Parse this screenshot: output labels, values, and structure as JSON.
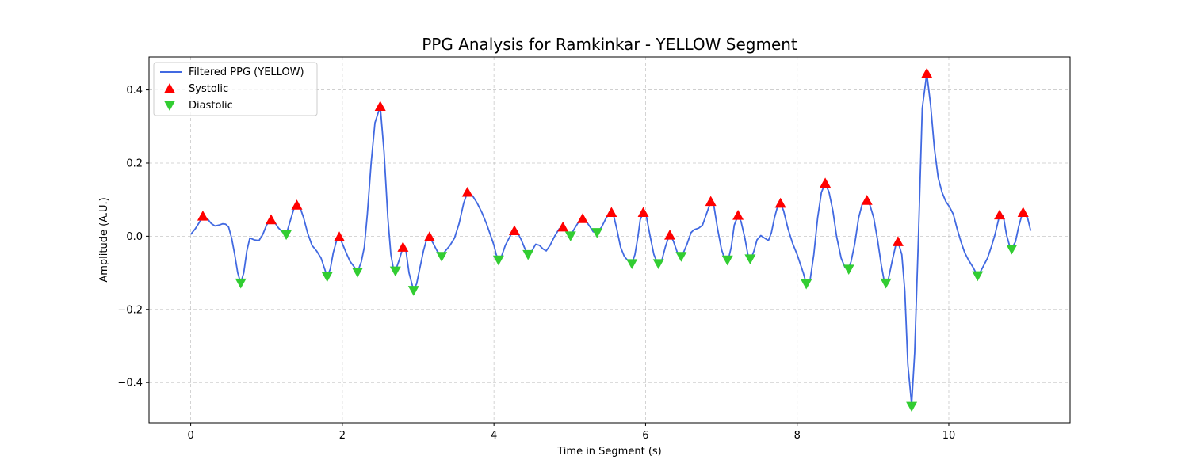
{
  "chart_data": {
    "type": "line",
    "title": "PPG Analysis for Ramkinkar - YELLOW Segment",
    "xlabel": "Time in Segment (s)",
    "ylabel": "Amplitude (A.U.)",
    "xlim": [
      -0.55,
      11.6
    ],
    "ylim": [
      -0.51,
      0.49
    ],
    "xticks": [
      0,
      2,
      4,
      6,
      8,
      10
    ],
    "xtick_labels": [
      "0",
      "2",
      "4",
      "6",
      "8",
      "10"
    ],
    "yticks": [
      -0.4,
      -0.2,
      0.0,
      0.2,
      0.4
    ],
    "ytick_labels": [
      "−0.4",
      "−0.2",
      "0.0",
      "0.2",
      "0.4"
    ],
    "grid": true,
    "legend_position": "top-left",
    "colors": {
      "line": "#4169e1",
      "systolic": "#ff0000",
      "diastolic": "#32cd32"
    },
    "series": [
      {
        "name": "Filtered PPG (YELLOW)",
        "kind": "line",
        "points": [
          [
            0.0,
            0.005
          ],
          [
            0.06,
            0.02
          ],
          [
            0.12,
            0.04
          ],
          [
            0.16,
            0.055
          ],
          [
            0.22,
            0.048
          ],
          [
            0.27,
            0.035
          ],
          [
            0.32,
            0.028
          ],
          [
            0.38,
            0.031
          ],
          [
            0.42,
            0.034
          ],
          [
            0.46,
            0.033
          ],
          [
            0.5,
            0.025
          ],
          [
            0.54,
            -0.005
          ],
          [
            0.58,
            -0.05
          ],
          [
            0.62,
            -0.1
          ],
          [
            0.66,
            -0.128
          ],
          [
            0.7,
            -0.1
          ],
          [
            0.74,
            -0.04
          ],
          [
            0.78,
            -0.005
          ],
          [
            0.84,
            -0.01
          ],
          [
            0.9,
            -0.012
          ],
          [
            0.95,
            0.005
          ],
          [
            1.0,
            0.03
          ],
          [
            1.05,
            0.045
          ],
          [
            1.1,
            0.04
          ],
          [
            1.16,
            0.022
          ],
          [
            1.22,
            0.01
          ],
          [
            1.26,
            0.005
          ],
          [
            1.31,
            0.04
          ],
          [
            1.36,
            0.075
          ],
          [
            1.4,
            0.085
          ],
          [
            1.44,
            0.08
          ],
          [
            1.49,
            0.05
          ],
          [
            1.54,
            0.01
          ],
          [
            1.6,
            -0.025
          ],
          [
            1.66,
            -0.04
          ],
          [
            1.72,
            -0.06
          ],
          [
            1.76,
            -0.085
          ],
          [
            1.8,
            -0.11
          ],
          [
            1.84,
            -0.09
          ],
          [
            1.88,
            -0.045
          ],
          [
            1.92,
            -0.015
          ],
          [
            1.96,
            -0.002
          ],
          [
            2.0,
            -0.02
          ],
          [
            2.05,
            -0.045
          ],
          [
            2.1,
            -0.068
          ],
          [
            2.16,
            -0.085
          ],
          [
            2.2,
            -0.098
          ],
          [
            2.25,
            -0.07
          ],
          [
            2.29,
            -0.03
          ],
          [
            2.33,
            0.06
          ],
          [
            2.38,
            0.2
          ],
          [
            2.43,
            0.31
          ],
          [
            2.5,
            0.355
          ],
          [
            2.55,
            0.23
          ],
          [
            2.6,
            0.05
          ],
          [
            2.64,
            -0.05
          ],
          [
            2.67,
            -0.085
          ],
          [
            2.7,
            -0.095
          ],
          [
            2.75,
            -0.065
          ],
          [
            2.8,
            -0.03
          ],
          [
            2.84,
            -0.04
          ],
          [
            2.88,
            -0.1
          ],
          [
            2.94,
            -0.148
          ],
          [
            2.98,
            -0.13
          ],
          [
            3.02,
            -0.09
          ],
          [
            3.07,
            -0.04
          ],
          [
            3.11,
            -0.01
          ],
          [
            3.15,
            -0.002
          ],
          [
            3.2,
            -0.02
          ],
          [
            3.25,
            -0.04
          ],
          [
            3.31,
            -0.055
          ],
          [
            3.36,
            -0.04
          ],
          [
            3.42,
            -0.025
          ],
          [
            3.48,
            -0.005
          ],
          [
            3.54,
            0.035
          ],
          [
            3.6,
            0.09
          ],
          [
            3.65,
            0.12
          ],
          [
            3.72,
            0.11
          ],
          [
            3.78,
            0.09
          ],
          [
            3.84,
            0.065
          ],
          [
            3.9,
            0.035
          ],
          [
            3.96,
            0.0
          ],
          [
            4.0,
            -0.025
          ],
          [
            4.03,
            -0.05
          ],
          [
            4.06,
            -0.065
          ],
          [
            4.1,
            -0.055
          ],
          [
            4.15,
            -0.025
          ],
          [
            4.2,
            -0.005
          ],
          [
            4.25,
            0.015
          ],
          [
            4.3,
            0.015
          ],
          [
            4.36,
            -0.01
          ],
          [
            4.41,
            -0.035
          ],
          [
            4.45,
            -0.05
          ],
          [
            4.5,
            -0.04
          ],
          [
            4.55,
            -0.022
          ],
          [
            4.6,
            -0.025
          ],
          [
            4.65,
            -0.035
          ],
          [
            4.69,
            -0.04
          ],
          [
            4.74,
            -0.025
          ],
          [
            4.8,
            0.0
          ],
          [
            4.86,
            0.02
          ],
          [
            4.91,
            0.025
          ],
          [
            4.96,
            0.015
          ],
          [
            5.01,
            0.001
          ],
          [
            5.06,
            0.02
          ],
          [
            5.12,
            0.04
          ],
          [
            5.17,
            0.048
          ],
          [
            5.22,
            0.04
          ],
          [
            5.27,
            0.025
          ],
          [
            5.31,
            0.012
          ],
          [
            5.36,
            0.01
          ],
          [
            5.42,
            0.025
          ],
          [
            5.48,
            0.05
          ],
          [
            5.53,
            0.065
          ],
          [
            5.58,
            0.055
          ],
          [
            5.62,
            0.02
          ],
          [
            5.67,
            -0.03
          ],
          [
            5.72,
            -0.055
          ],
          [
            5.78,
            -0.07
          ],
          [
            5.82,
            -0.075
          ],
          [
            5.86,
            -0.05
          ],
          [
            5.9,
            0.0
          ],
          [
            5.93,
            0.045
          ],
          [
            5.97,
            0.065
          ],
          [
            6.01,
            0.055
          ],
          [
            6.06,
            0.0
          ],
          [
            6.11,
            -0.05
          ],
          [
            6.16,
            -0.075
          ],
          [
            6.21,
            -0.07
          ],
          [
            6.26,
            -0.03
          ],
          [
            6.3,
            -0.005
          ],
          [
            6.33,
            0.003
          ],
          [
            6.37,
            -0.015
          ],
          [
            6.42,
            -0.045
          ],
          [
            6.46,
            -0.055
          ],
          [
            6.5,
            -0.045
          ],
          [
            6.55,
            -0.02
          ],
          [
            6.6,
            0.01
          ],
          [
            6.64,
            0.018
          ],
          [
            6.7,
            0.022
          ],
          [
            6.75,
            0.03
          ],
          [
            6.81,
            0.065
          ],
          [
            6.86,
            0.095
          ],
          [
            6.9,
            0.085
          ],
          [
            6.95,
            0.02
          ],
          [
            7.0,
            -0.035
          ],
          [
            7.04,
            -0.06
          ],
          [
            7.09,
            -0.065
          ],
          [
            7.13,
            -0.03
          ],
          [
            7.17,
            0.03
          ],
          [
            7.22,
            0.057
          ],
          [
            7.26,
            0.04
          ],
          [
            7.31,
            -0.005
          ],
          [
            7.35,
            -0.05
          ],
          [
            7.39,
            -0.062
          ],
          [
            7.43,
            -0.04
          ],
          [
            7.47,
            -0.01
          ],
          [
            7.52,
            0.002
          ],
          [
            7.57,
            -0.005
          ],
          [
            7.62,
            -0.012
          ],
          [
            7.66,
            0.01
          ],
          [
            7.7,
            0.05
          ],
          [
            7.74,
            0.08
          ],
          [
            7.78,
            0.09
          ],
          [
            7.82,
            0.07
          ],
          [
            7.88,
            0.02
          ],
          [
            7.94,
            -0.02
          ],
          [
            8.0,
            -0.05
          ],
          [
            8.04,
            -0.075
          ],
          [
            8.08,
            -0.1
          ],
          [
            8.12,
            -0.13
          ],
          [
            8.17,
            -0.12
          ],
          [
            8.22,
            -0.05
          ],
          [
            8.27,
            0.05
          ],
          [
            8.32,
            0.12
          ],
          [
            8.37,
            0.145
          ],
          [
            8.42,
            0.12
          ],
          [
            8.47,
            0.07
          ],
          [
            8.52,
            0.0
          ],
          [
            8.58,
            -0.06
          ],
          [
            8.63,
            -0.085
          ],
          [
            8.67,
            -0.09
          ],
          [
            8.71,
            -0.07
          ],
          [
            8.76,
            -0.02
          ],
          [
            8.81,
            0.05
          ],
          [
            8.86,
            0.09
          ],
          [
            8.92,
            0.098
          ],
          [
            8.96,
            0.085
          ],
          [
            9.01,
            0.05
          ],
          [
            9.06,
            -0.01
          ],
          [
            9.11,
            -0.08
          ],
          [
            9.15,
            -0.125
          ],
          [
            9.2,
            -0.12
          ],
          [
            9.25,
            -0.07
          ],
          [
            9.3,
            -0.025
          ],
          [
            9.33,
            -0.015
          ],
          [
            9.38,
            -0.05
          ],
          [
            9.42,
            -0.15
          ],
          [
            9.46,
            -0.35
          ],
          [
            9.51,
            -0.46
          ],
          [
            9.55,
            -0.32
          ],
          [
            9.6,
            0.0
          ],
          [
            9.65,
            0.35
          ],
          [
            9.71,
            0.445
          ],
          [
            9.76,
            0.36
          ],
          [
            9.81,
            0.24
          ],
          [
            9.86,
            0.16
          ],
          [
            9.91,
            0.12
          ],
          [
            9.96,
            0.095
          ],
          [
            10.01,
            0.08
          ],
          [
            10.06,
            0.06
          ],
          [
            10.11,
            0.02
          ],
          [
            10.16,
            -0.015
          ],
          [
            10.21,
            -0.045
          ],
          [
            10.26,
            -0.065
          ],
          [
            10.32,
            -0.085
          ],
          [
            10.37,
            -0.105
          ],
          [
            10.41,
            -0.1
          ],
          [
            10.46,
            -0.08
          ],
          [
            10.51,
            -0.06
          ],
          [
            10.56,
            -0.03
          ],
          [
            10.61,
            0.005
          ],
          [
            10.67,
            0.058
          ],
          [
            10.72,
            0.055
          ],
          [
            10.76,
            0.005
          ],
          [
            10.8,
            -0.025
          ],
          [
            10.84,
            -0.03
          ],
          [
            10.88,
            -0.015
          ],
          [
            10.92,
            0.025
          ],
          [
            10.96,
            0.055
          ],
          [
            11.0,
            0.06
          ],
          [
            11.04,
            0.05
          ],
          [
            11.08,
            0.015
          ]
        ]
      },
      {
        "name": "Systolic",
        "kind": "marker-up",
        "points": [
          [
            0.16,
            0.055
          ],
          [
            1.06,
            0.045
          ],
          [
            1.4,
            0.085
          ],
          [
            1.96,
            -0.002
          ],
          [
            2.5,
            0.355
          ],
          [
            2.8,
            -0.03
          ],
          [
            3.15,
            -0.002
          ],
          [
            3.65,
            0.12
          ],
          [
            4.27,
            0.015
          ],
          [
            4.91,
            0.025
          ],
          [
            5.17,
            0.048
          ],
          [
            5.55,
            0.065
          ],
          [
            5.97,
            0.065
          ],
          [
            6.32,
            0.003
          ],
          [
            6.86,
            0.095
          ],
          [
            7.22,
            0.057
          ],
          [
            7.78,
            0.09
          ],
          [
            8.37,
            0.145
          ],
          [
            8.92,
            0.098
          ],
          [
            9.33,
            -0.015
          ],
          [
            9.71,
            0.445
          ],
          [
            10.67,
            0.058
          ],
          [
            10.98,
            0.065
          ]
        ]
      },
      {
        "name": "Diastolic",
        "kind": "marker-down",
        "points": [
          [
            0.66,
            -0.128
          ],
          [
            1.26,
            0.005
          ],
          [
            1.8,
            -0.11
          ],
          [
            2.2,
            -0.098
          ],
          [
            2.7,
            -0.095
          ],
          [
            2.94,
            -0.148
          ],
          [
            3.31,
            -0.055
          ],
          [
            4.06,
            -0.065
          ],
          [
            4.45,
            -0.05
          ],
          [
            5.01,
            0.001
          ],
          [
            5.36,
            0.01
          ],
          [
            5.82,
            -0.075
          ],
          [
            6.17,
            -0.075
          ],
          [
            6.47,
            -0.055
          ],
          [
            7.08,
            -0.065
          ],
          [
            7.38,
            -0.062
          ],
          [
            8.12,
            -0.13
          ],
          [
            8.68,
            -0.09
          ],
          [
            9.17,
            -0.128
          ],
          [
            9.51,
            -0.465
          ],
          [
            10.38,
            -0.108
          ],
          [
            10.83,
            -0.035
          ]
        ]
      }
    ]
  }
}
